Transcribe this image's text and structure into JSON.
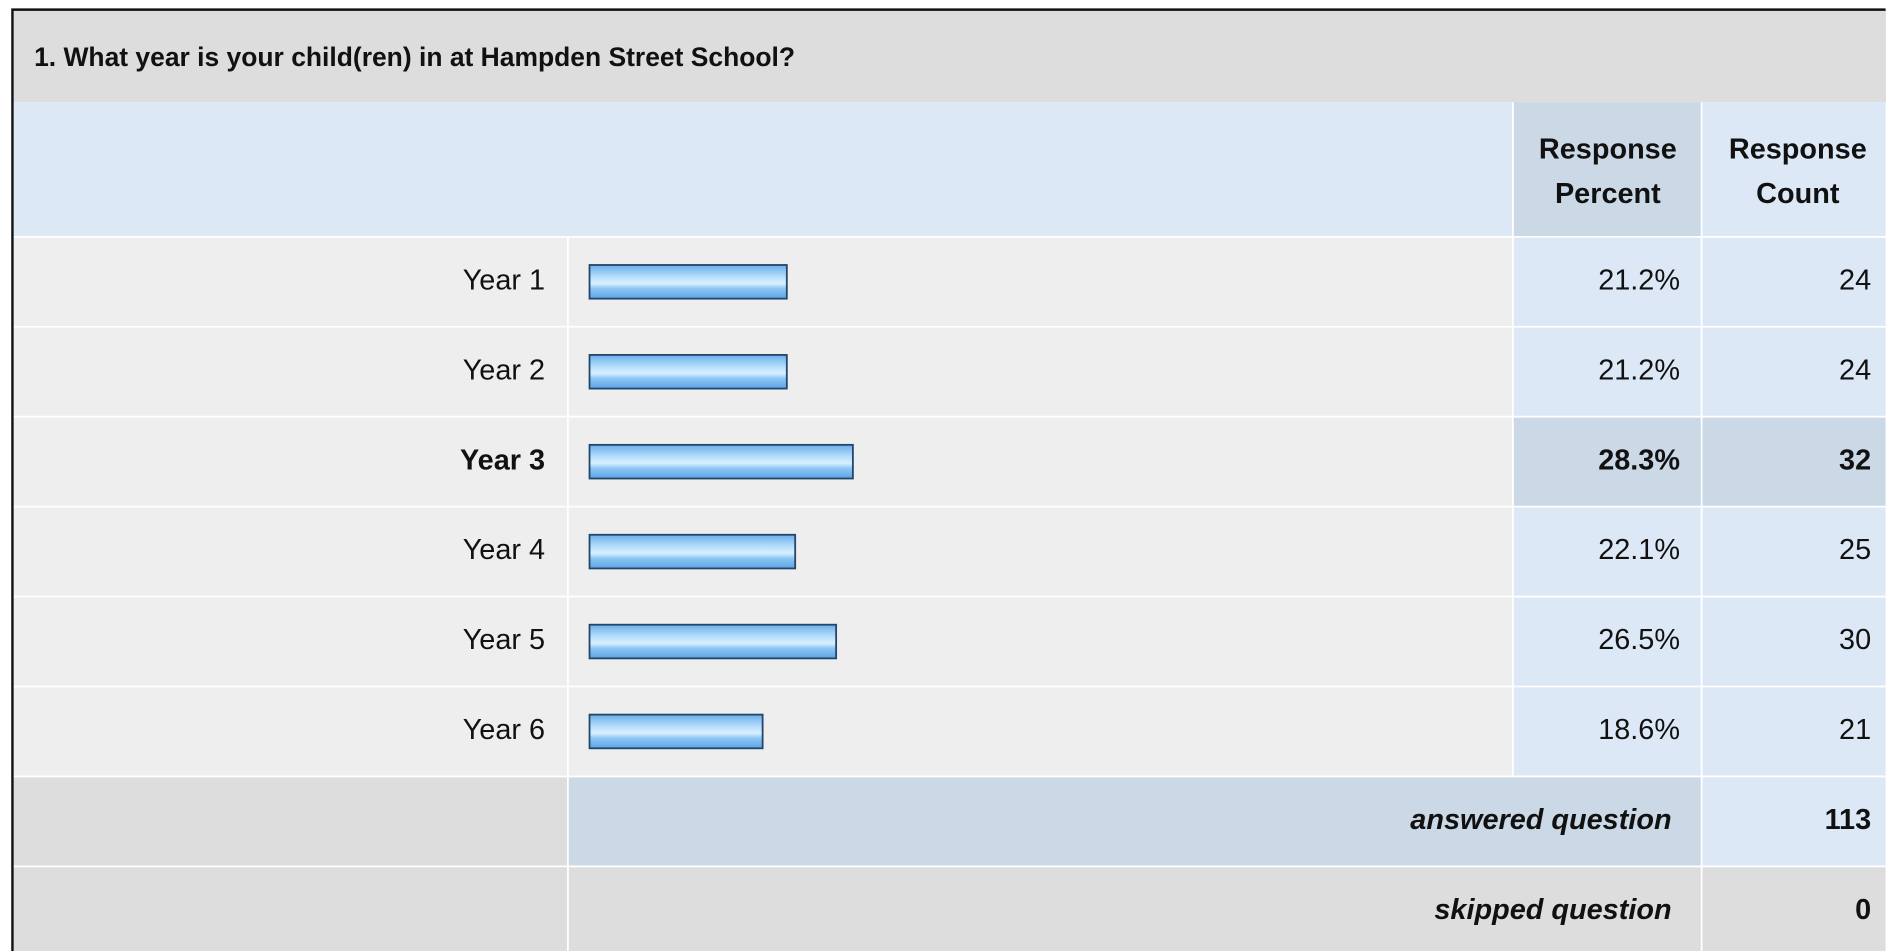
{
  "title": "1. What year is your child(ren) in at Hampden Street School?",
  "headers": {
    "percent": "Response Percent",
    "count": "Response Count"
  },
  "rows": [
    {
      "label": "Year 1",
      "percent": 21.2,
      "percent_label": "21.2%",
      "count": 24
    },
    {
      "label": "Year 2",
      "percent": 21.2,
      "percent_label": "21.2%",
      "count": 24
    },
    {
      "label": "Year 3",
      "percent": 28.3,
      "percent_label": "28.3%",
      "count": 32
    },
    {
      "label": "Year 4",
      "percent": 22.1,
      "percent_label": "22.1%",
      "count": 25
    },
    {
      "label": "Year 5",
      "percent": 26.5,
      "percent_label": "26.5%",
      "count": 30
    },
    {
      "label": "Year 6",
      "percent": 18.6,
      "percent_label": "18.6%",
      "count": 21
    }
  ],
  "footer": [
    {
      "label": "answered question",
      "count": 113
    },
    {
      "label": "skipped question",
      "count": 0
    }
  ]
}
